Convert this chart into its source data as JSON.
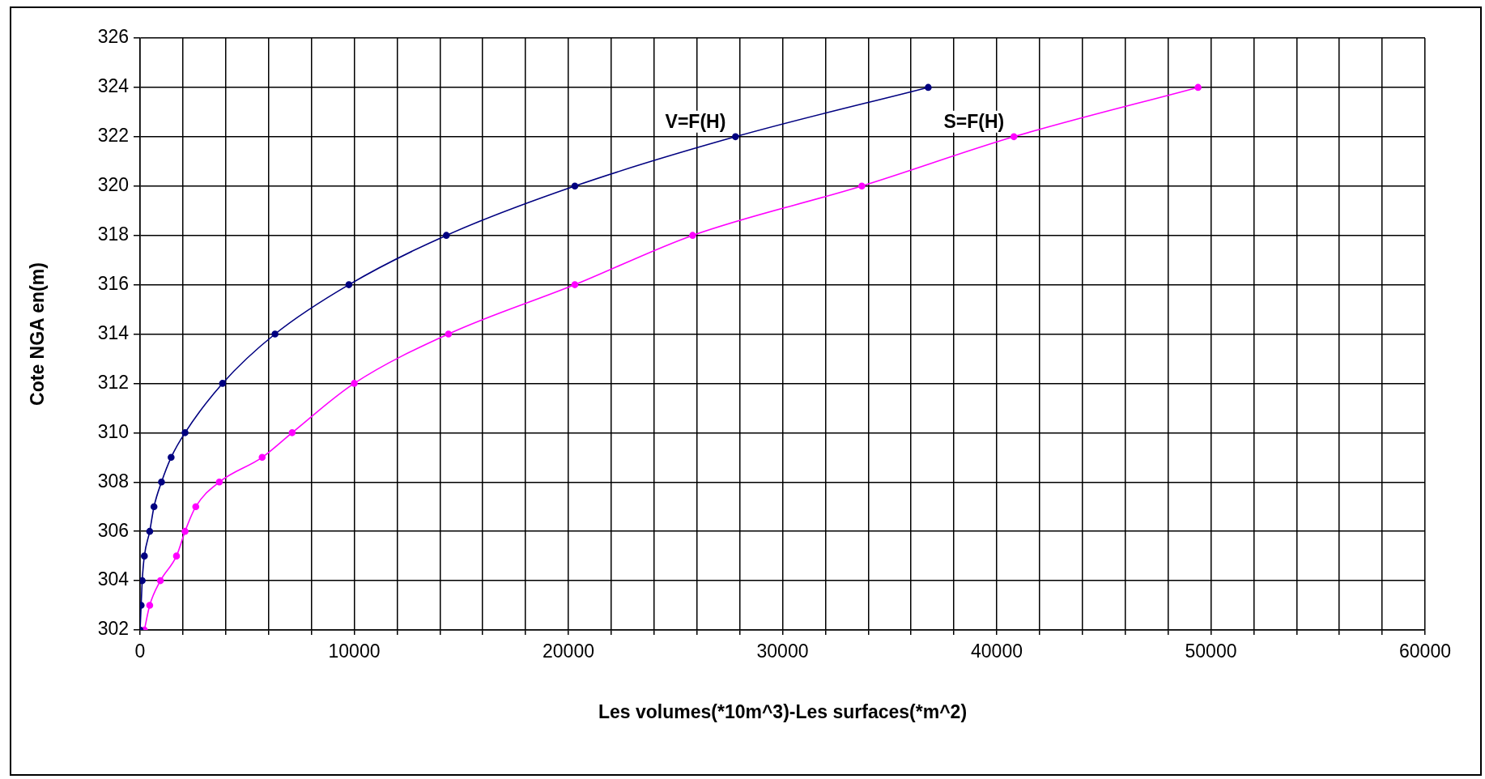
{
  "chart_data": {
    "type": "line",
    "xlabel": "Les volumes(*10m^3)-Les surfaces(*m^2)",
    "ylabel": "Cote NGA en(m)",
    "series": [
      {
        "name": "V=F(H)",
        "color": "#000080",
        "x": [
          0,
          50,
          100,
          200,
          450,
          650,
          1000,
          1450,
          2100,
          3850,
          6300,
          9750,
          14300,
          20300,
          27800,
          36800
        ],
        "values": [
          302,
          303,
          304,
          305,
          306,
          307,
          308,
          309,
          310,
          312,
          314,
          316,
          318,
          320,
          322,
          324
        ]
      },
      {
        "name": "S=F(H)",
        "color": "#ff00ff",
        "x": [
          200,
          450,
          950,
          1700,
          2100,
          2600,
          3700,
          5700,
          7100,
          10000,
          14400,
          20300,
          25800,
          33700,
          40800,
          49400
        ],
        "values": [
          302,
          303,
          304,
          305,
          306,
          307,
          308,
          309,
          310,
          312,
          314,
          316,
          318,
          320,
          322,
          324
        ]
      }
    ],
    "xlim": [
      0,
      60000
    ],
    "xticks": [
      0,
      {
        "value": 2000,
        "label": null
      },
      {
        "value": 4000,
        "label": null
      },
      {
        "value": 6000,
        "label": null
      },
      {
        "value": 8000,
        "label": null
      },
      10000,
      {
        "value": 12000,
        "label": null
      },
      {
        "value": 14000,
        "label": null
      },
      {
        "value": 16000,
        "label": null
      },
      {
        "value": 18000,
        "label": null
      },
      20000,
      {
        "value": 22000,
        "label": null
      },
      {
        "value": 24000,
        "label": null
      },
      {
        "value": 26000,
        "label": null
      },
      {
        "value": 28000,
        "label": null
      },
      30000,
      {
        "value": 32000,
        "label": null
      },
      {
        "value": 34000,
        "label": null
      },
      {
        "value": 36000,
        "label": null
      },
      {
        "value": 38000,
        "label": null
      },
      40000,
      {
        "value": 42000,
        "label": null
      },
      {
        "value": 44000,
        "label": null
      },
      {
        "value": 46000,
        "label": null
      },
      {
        "value": 48000,
        "label": null
      },
      50000,
      {
        "value": 52000,
        "label": null
      },
      {
        "value": 54000,
        "label": null
      },
      {
        "value": 56000,
        "label": null
      },
      {
        "value": 58000,
        "label": null
      },
      60000
    ],
    "ylim": [
      302,
      326
    ],
    "yticks": [
      302,
      304,
      306,
      308,
      310,
      312,
      314,
      316,
      318,
      320,
      322,
      324,
      326
    ],
    "grid": true,
    "legend": false,
    "marker": "circle",
    "line_style": "solid"
  }
}
